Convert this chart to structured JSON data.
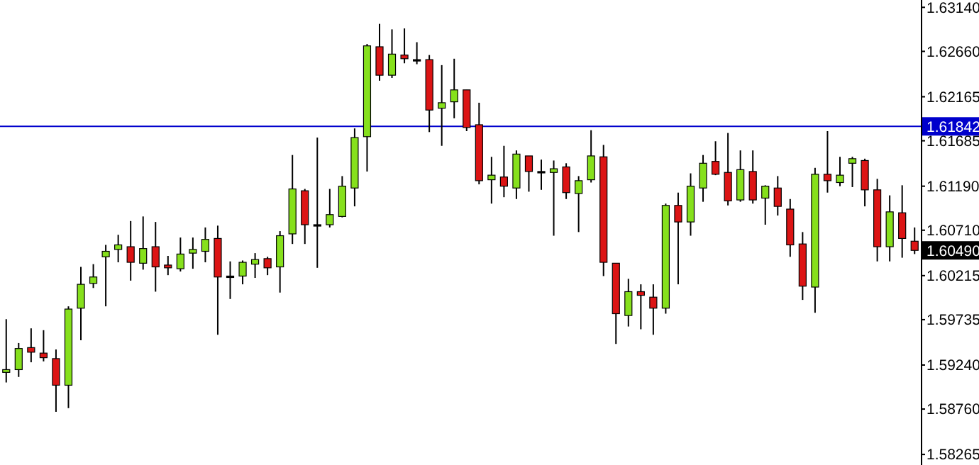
{
  "chart_data": {
    "type": "candlestick",
    "categories": [
      null,
      null,
      null,
      null,
      null,
      null,
      null,
      null,
      null,
      null,
      null,
      null,
      null,
      null,
      null,
      null,
      null,
      null,
      null,
      null,
      null,
      null,
      null,
      null,
      null,
      null,
      null,
      null,
      null,
      null,
      null,
      null,
      null,
      null,
      null,
      null,
      null,
      null,
      null,
      null,
      null,
      null,
      null,
      null,
      null,
      null,
      null,
      null,
      null,
      null,
      null,
      null,
      null,
      null,
      null,
      null,
      null,
      null,
      null,
      null,
      null,
      null,
      null,
      null,
      null,
      null,
      null,
      null,
      null,
      null,
      null,
      null,
      null,
      null
    ],
    "ohlc": [
      [
        1.5916,
        1.5974,
        1.5905,
        1.5919
      ],
      [
        1.5919,
        1.5948,
        1.5911,
        1.5942
      ],
      [
        1.5943,
        1.5964,
        1.5927,
        1.5938
      ],
      [
        1.5937,
        1.5962,
        1.5928,
        1.5932
      ],
      [
        1.5931,
        1.5941,
        1.5873,
        1.5902
      ],
      [
        1.5902,
        1.5988,
        1.5877,
        1.5985
      ],
      [
        1.5986,
        1.6031,
        1.5951,
        1.6012
      ],
      [
        1.6013,
        1.6034,
        1.6008,
        1.602
      ],
      [
        1.6042,
        1.6055,
        1.5988,
        1.6048
      ],
      [
        1.605,
        1.6066,
        1.6036,
        1.6055
      ],
      [
        1.6053,
        1.6081,
        1.6016,
        1.6036
      ],
      [
        1.6035,
        1.6086,
        1.6028,
        1.6051
      ],
      [
        1.6053,
        1.608,
        1.6004,
        1.6031
      ],
      [
        1.6033,
        1.6043,
        1.6022,
        1.603
      ],
      [
        1.6029,
        1.6063,
        1.6026,
        1.6045
      ],
      [
        1.6046,
        1.6063,
        1.6029,
        1.605
      ],
      [
        1.6048,
        1.6074,
        1.6036,
        1.6061
      ],
      [
        1.6062,
        1.6076,
        1.5957,
        1.602
      ],
      [
        1.6021,
        1.6037,
        1.5996,
        1.6021
      ],
      [
        1.6021,
        1.6038,
        1.6012,
        1.6036
      ],
      [
        1.6034,
        1.6046,
        1.6019,
        1.6039
      ],
      [
        1.604,
        1.6042,
        1.6022,
        1.603
      ],
      [
        1.6031,
        1.607,
        1.6003,
        1.6065
      ],
      [
        1.6067,
        1.6153,
        1.6056,
        1.6116
      ],
      [
        1.6114,
        1.6116,
        1.6056,
        1.6077
      ],
      [
        1.6077,
        1.6172,
        1.603,
        1.6077
      ],
      [
        1.6077,
        1.6116,
        1.6074,
        1.6088
      ],
      [
        1.6086,
        1.613,
        1.6085,
        1.6119
      ],
      [
        1.6117,
        1.6182,
        1.6097,
        1.6172
      ],
      [
        1.6173,
        1.6274,
        1.6135,
        1.6272
      ],
      [
        1.6271,
        1.6296,
        1.6234,
        1.624
      ],
      [
        1.624,
        1.629,
        1.6237,
        1.6263
      ],
      [
        1.6262,
        1.6291,
        1.6253,
        1.6258
      ],
      [
        1.6257,
        1.6276,
        1.6252,
        1.6257
      ],
      [
        1.6257,
        1.6262,
        1.6178,
        1.6202
      ],
      [
        1.6204,
        1.6251,
        1.6163,
        1.621
      ],
      [
        1.6211,
        1.6258,
        1.6193,
        1.6224
      ],
      [
        1.6224,
        1.6224,
        1.6179,
        1.6183
      ],
      [
        1.6186,
        1.621,
        1.6121,
        1.6125
      ],
      [
        1.6126,
        1.6151,
        1.61,
        1.6131
      ],
      [
        1.6129,
        1.6163,
        1.6107,
        1.6119
      ],
      [
        1.6117,
        1.6158,
        1.6105,
        1.6154
      ],
      [
        1.6152,
        1.6152,
        1.6113,
        1.6135
      ],
      [
        1.6135,
        1.6148,
        1.6115,
        1.6135
      ],
      [
        1.6134,
        1.6147,
        1.6065,
        1.6138
      ],
      [
        1.614,
        1.6144,
        1.6105,
        1.6112
      ],
      [
        1.6111,
        1.613,
        1.6069,
        1.6125
      ],
      [
        1.6126,
        1.618,
        1.6123,
        1.6152
      ],
      [
        1.6151,
        1.6164,
        1.6021,
        1.6036
      ],
      [
        1.6035,
        1.6035,
        1.5947,
        1.598
      ],
      [
        1.5978,
        1.6018,
        1.5966,
        1.6004
      ],
      [
        1.6004,
        1.6012,
        1.5963,
        1.6
      ],
      [
        1.5998,
        1.6012,
        1.5957,
        1.5986
      ],
      [
        1.5986,
        1.61,
        1.598,
        1.6098
      ],
      [
        1.6098,
        1.6112,
        1.6012,
        1.608
      ],
      [
        1.608,
        1.6133,
        1.6065,
        1.6119
      ],
      [
        1.6117,
        1.6153,
        1.6102,
        1.6144
      ],
      [
        1.6146,
        1.6168,
        1.6131,
        1.6132
      ],
      [
        1.6134,
        1.6177,
        1.6098,
        1.6103
      ],
      [
        1.6104,
        1.6158,
        1.6102,
        1.6137
      ],
      [
        1.6135,
        1.6158,
        1.61,
        1.6104
      ],
      [
        1.6106,
        1.612,
        1.6077,
        1.6119
      ],
      [
        1.6117,
        1.613,
        1.6087,
        1.6097
      ],
      [
        1.6094,
        1.6105,
        1.6042,
        1.6055
      ],
      [
        1.6056,
        1.6069,
        1.5995,
        1.601
      ],
      [
        1.6009,
        1.6139,
        1.5981,
        1.6132
      ],
      [
        1.6132,
        1.6179,
        1.6112,
        1.6125
      ],
      [
        1.6123,
        1.6151,
        1.6119,
        1.6131
      ],
      [
        1.6144,
        1.6151,
        1.6118,
        1.6149
      ],
      [
        1.6147,
        1.6149,
        1.6097,
        1.6115
      ],
      [
        1.6115,
        1.6127,
        1.6037,
        1.6053
      ],
      [
        1.6053,
        1.6109,
        1.6037,
        1.6091
      ],
      [
        1.609,
        1.612,
        1.6041,
        1.6062
      ],
      [
        1.6059,
        1.6074,
        1.6045,
        1.6049
      ]
    ],
    "colors": [
      "#86e01c",
      "#86e01c",
      "#dc1414",
      "#dc1414",
      "#dc1414",
      "#86e01c",
      "#86e01c",
      "#86e01c",
      "#86e01c",
      "#86e01c",
      "#dc1414",
      "#86e01c",
      "#dc1414",
      "#dc1414",
      "#86e01c",
      "#86e01c",
      "#86e01c",
      "#dc1414",
      "#000000",
      "#86e01c",
      "#86e01c",
      "#dc1414",
      "#86e01c",
      "#86e01c",
      "#dc1414",
      "#000000",
      "#86e01c",
      "#86e01c",
      "#86e01c",
      "#86e01c",
      "#dc1414",
      "#86e01c",
      "#dc1414",
      "#000000",
      "#dc1414",
      "#86e01c",
      "#86e01c",
      "#dc1414",
      "#dc1414",
      "#86e01c",
      "#dc1414",
      "#86e01c",
      "#dc1414",
      "#000000",
      "#86e01c",
      "#dc1414",
      "#86e01c",
      "#86e01c",
      "#dc1414",
      "#dc1414",
      "#86e01c",
      "#dc1414",
      "#dc1414",
      "#86e01c",
      "#dc1414",
      "#86e01c",
      "#86e01c",
      "#dc1414",
      "#dc1414",
      "#86e01c",
      "#dc1414",
      "#86e01c",
      "#dc1414",
      "#dc1414",
      "#dc1414",
      "#86e01c",
      "#dc1414",
      "#86e01c",
      "#86e01c",
      "#dc1414",
      "#dc1414",
      "#86e01c",
      "#dc1414",
      "#dc1414"
    ],
    "ylim": [
      1.5815,
      1.6322
    ],
    "yticks": [
      {
        "value": 1.6314,
        "label": "1.63140"
      },
      {
        "value": 1.6266,
        "label": "1.62660"
      },
      {
        "value": 1.62165,
        "label": "1.62165"
      },
      {
        "value": 1.61685,
        "label": "1.61685"
      },
      {
        "value": 1.6119,
        "label": "1.61190"
      },
      {
        "value": 1.6071,
        "label": "1.60710"
      },
      {
        "value": 1.60215,
        "label": "1.60215"
      },
      {
        "value": 1.59735,
        "label": "1.59735"
      },
      {
        "value": 1.5924,
        "label": "1.59240"
      },
      {
        "value": 1.5876,
        "label": "1.58760"
      },
      {
        "value": 1.58265,
        "label": "1.58265"
      }
    ],
    "tick_labels": "y",
    "ref_lines": [
      {
        "axis": "y",
        "value": 1.61842,
        "label": "1.61842",
        "color": "#0000cc"
      }
    ],
    "annotations": [
      {
        "text": "1.60490",
        "y": 1.6049
      }
    ]
  }
}
